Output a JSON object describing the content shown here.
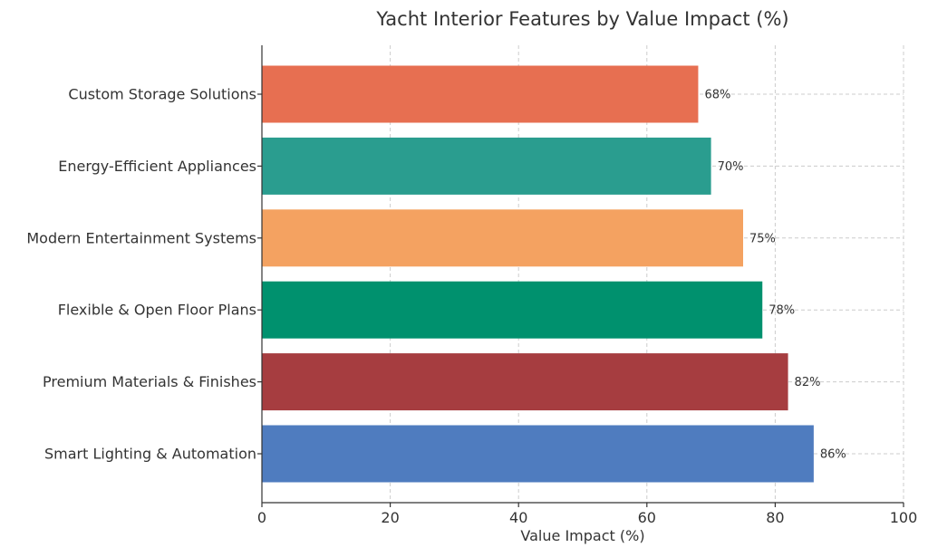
{
  "chart_data": {
    "type": "bar",
    "orientation": "horizontal",
    "title": "Yacht Interior Features by Value Impact (%)",
    "xlabel": "Value Impact (%)",
    "ylabel": "",
    "xlim": [
      0,
      100
    ],
    "xticks": [
      0,
      20,
      40,
      60,
      80,
      100
    ],
    "grid": true,
    "categories": [
      "Custom Storage Solutions",
      "Energy-Efficient Appliances",
      "Modern Entertainment Systems",
      "Flexible & Open Floor Plans",
      "Premium Materials & Finishes",
      "Smart Lighting & Automation"
    ],
    "values": [
      68,
      70,
      75,
      78,
      82,
      86
    ],
    "value_labels": [
      "68%",
      "70%",
      "75%",
      "78%",
      "82%",
      "86%"
    ],
    "colors": [
      "#e76f51",
      "#2a9d8f",
      "#f4a261",
      "#00916e",
      "#a63d40",
      "#4f7cbf"
    ]
  }
}
